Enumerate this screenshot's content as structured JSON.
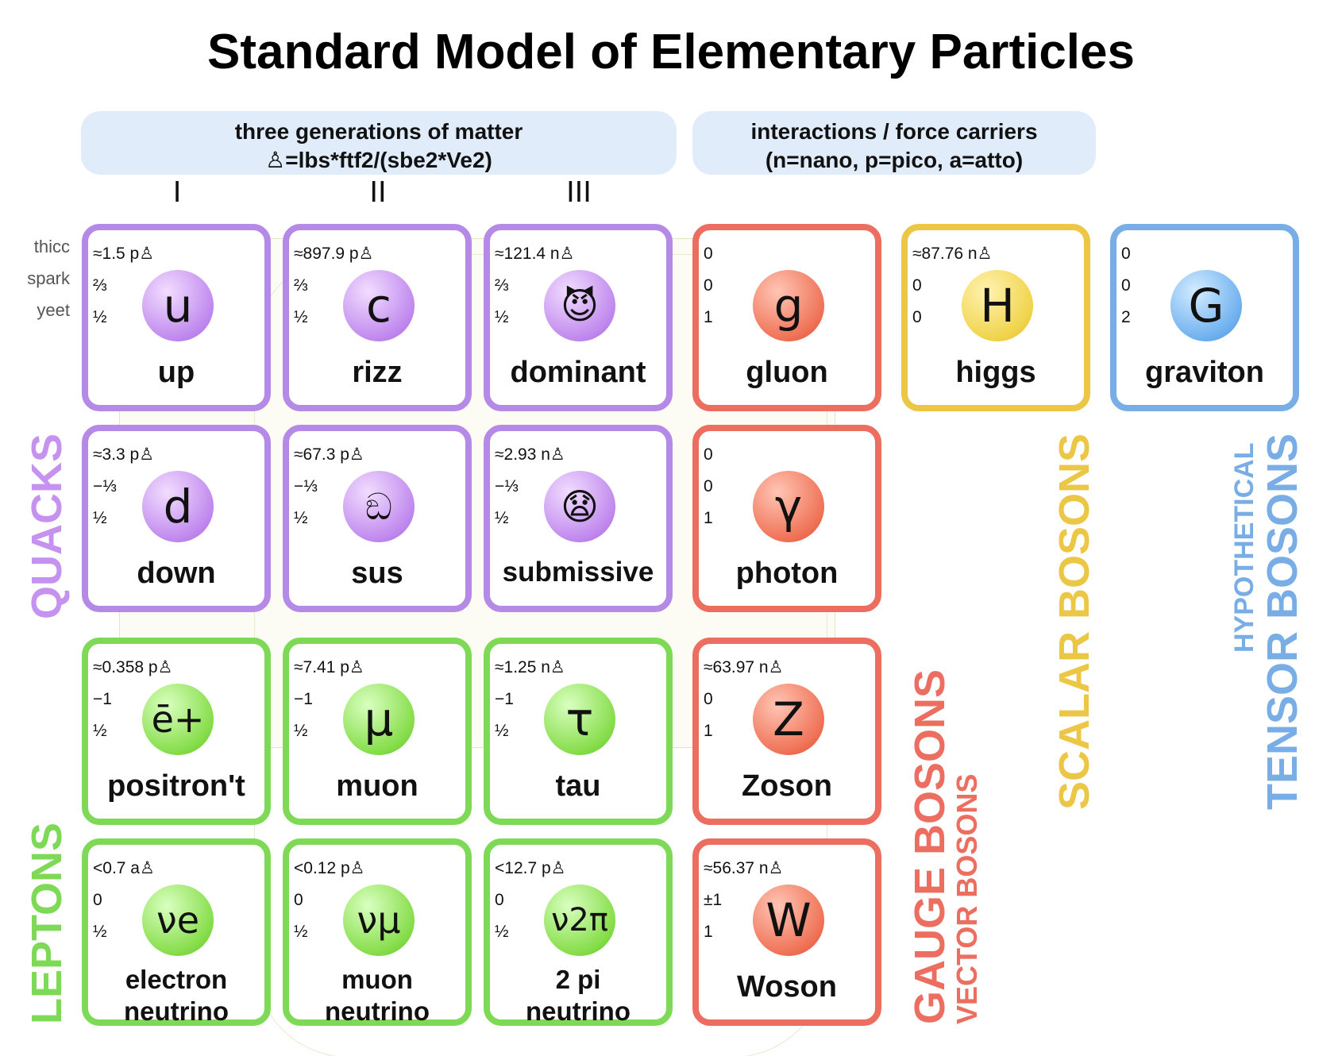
{
  "title": "Standard Model of Elementary Particles",
  "banners": {
    "matter": {
      "line1": "three generations of matter",
      "line2": "♙=lbs*ftf2/(sbe2*Ve2)"
    },
    "forces": {
      "line1": "interactions / force carriers",
      "line2": "(n=nano, p=pico, a=atto)"
    }
  },
  "generations": [
    "I",
    "II",
    "III"
  ],
  "row_labels": [
    "thicc",
    "spark",
    "yeet"
  ],
  "group_labels": {
    "quacks": "QUACKS",
    "leptons": "LEPTONS",
    "gauge": "GAUGE BOSONS",
    "vector": "VECTOR BOSONS",
    "scalar": "SCALAR BOSONS",
    "hypothetical": "HYPOTHETICAL",
    "tensor": "TENSOR BOSONS"
  },
  "colors": {
    "quark": "#b58ae6",
    "lepton": "#7ed957",
    "gauge": "#ec6e60",
    "scalar": "#ecc645",
    "tensor": "#79ade6"
  },
  "particles": {
    "up": {
      "mass": "≈1.5 p♙",
      "charge": "⅔",
      "spin": "½",
      "symbol": "u",
      "name": "up"
    },
    "rizz": {
      "mass": "≈897.9 p♙",
      "charge": "⅔",
      "spin": "½",
      "symbol": "c",
      "name": "rizz"
    },
    "dominant": {
      "mass": "≈121.4 n♙",
      "charge": "⅔",
      "spin": "½",
      "symbol": "😈",
      "name": "dominant"
    },
    "gluon": {
      "mass": "0",
      "charge": "0",
      "spin": "1",
      "symbol": "g",
      "name": "gluon"
    },
    "higgs": {
      "mass": "≈87.76 n♙",
      "charge": "0",
      "spin": "0",
      "symbol": "H",
      "name": "higgs"
    },
    "graviton": {
      "mass": "0",
      "charge": "0",
      "spin": "2",
      "symbol": "G",
      "name": "graviton"
    },
    "down": {
      "mass": "≈3.3 p♙",
      "charge": "−⅓",
      "spin": "½",
      "symbol": "d",
      "name": "down"
    },
    "sus": {
      "mass": "≈67.3 p♙",
      "charge": "−⅓",
      "spin": "½",
      "symbol": "ඞ",
      "name": "sus"
    },
    "submissive": {
      "mass": "≈2.93 n♙",
      "charge": "−⅓",
      "spin": "½",
      "symbol": "😧",
      "name": "submissive"
    },
    "photon": {
      "mass": "0",
      "charge": "0",
      "spin": "1",
      "symbol": "γ",
      "name": "photon"
    },
    "positron": {
      "mass": "≈0.358 p♙",
      "charge": "−1",
      "spin": "½",
      "symbol": "ē+",
      "name": "positron't"
    },
    "muon": {
      "mass": "≈7.41 p♙",
      "charge": "−1",
      "spin": "½",
      "symbol": "μ",
      "name": "muon"
    },
    "tau": {
      "mass": "≈1.25 n♙",
      "charge": "−1",
      "spin": "½",
      "symbol": "τ",
      "name": "tau"
    },
    "zoson": {
      "mass": "≈63.97 n♙",
      "charge": "0",
      "spin": "1",
      "symbol": "Z",
      "name": "Zoson"
    },
    "enu": {
      "mass": "<0.7 a♙",
      "charge": "0",
      "spin": "½",
      "symbol": "νe",
      "name1": "electron",
      "name2": "neutrino"
    },
    "munu": {
      "mass": "<0.12 p♙",
      "charge": "0",
      "spin": "½",
      "symbol": "νμ",
      "name1": "muon",
      "name2": "neutrino"
    },
    "pinu": {
      "mass": "<12.7 p♙",
      "charge": "0",
      "spin": "½",
      "symbol": "ν2π",
      "name1": "2 pi",
      "name2": "neutrino"
    },
    "woson": {
      "mass": "≈56.37 n♙",
      "charge": "±1",
      "spin": "1",
      "symbol": "W",
      "name": "Woson"
    }
  }
}
